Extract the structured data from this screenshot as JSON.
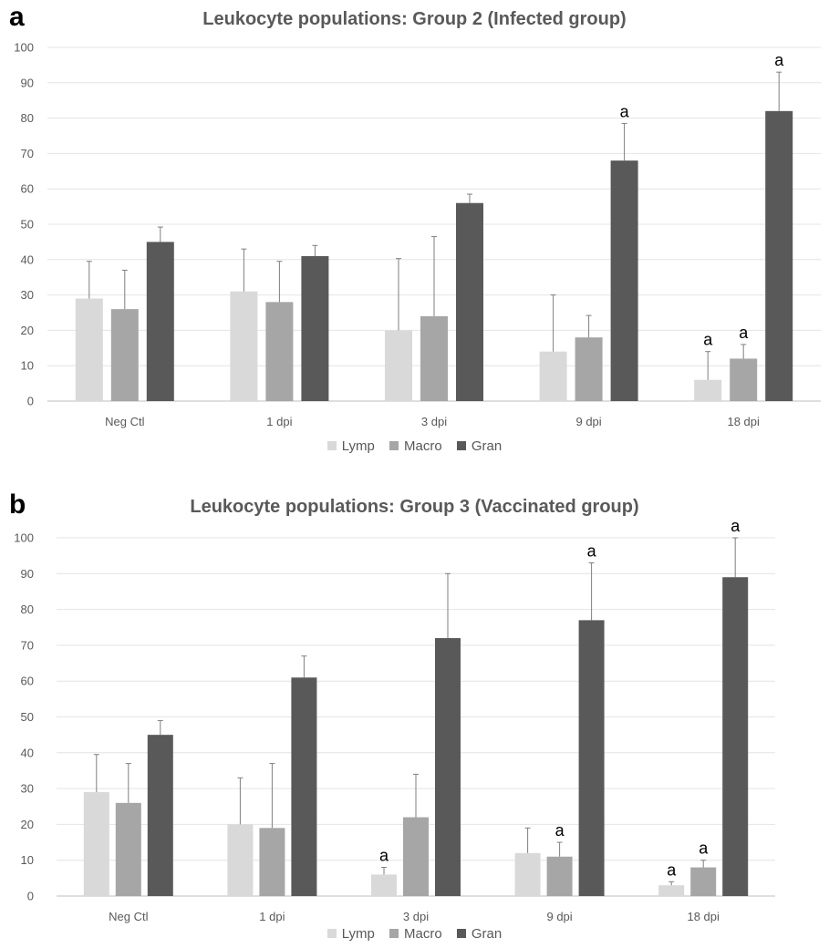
{
  "chart_data": [
    {
      "panel_letter": "a",
      "type": "bar",
      "title": "Leukocyte populations: Group 2 (Infected group)",
      "categories": [
        "Neg Ctl",
        "1 dpi",
        "3 dpi",
        "9 dpi",
        "18 dpi"
      ],
      "ylim": [
        0,
        100
      ],
      "yticks": [
        0,
        10,
        20,
        30,
        40,
        50,
        60,
        70,
        80,
        90,
        100
      ],
      "grid": true,
      "legend_position": "bottom",
      "series": [
        {
          "name": "Lymp",
          "color": "#d9d9d9",
          "values": [
            29,
            31,
            20,
            14,
            6
          ],
          "error_upper": [
            39.5,
            43,
            40.3,
            30,
            14
          ],
          "significance": [
            "",
            "",
            "",
            "",
            "a"
          ]
        },
        {
          "name": "Macro",
          "color": "#a6a6a6",
          "values": [
            26,
            28,
            24,
            18,
            12
          ],
          "error_upper": [
            37,
            39.5,
            46.5,
            24.2,
            16
          ],
          "significance": [
            "",
            "",
            "",
            "",
            "a"
          ]
        },
        {
          "name": "Gran",
          "color": "#595959",
          "values": [
            45,
            41,
            56,
            68,
            82
          ],
          "error_upper": [
            49.2,
            44,
            58.5,
            78.5,
            93
          ],
          "significance": [
            "",
            "",
            "",
            "a",
            "a"
          ]
        }
      ]
    },
    {
      "panel_letter": "b",
      "type": "bar",
      "title": "Leukocyte populations: Group 3 (Vaccinated group)",
      "categories": [
        "Neg Ctl",
        "1 dpi",
        "3 dpi",
        "9 dpi",
        "18 dpi"
      ],
      "ylim": [
        0,
        100
      ],
      "yticks": [
        0,
        10,
        20,
        30,
        40,
        50,
        60,
        70,
        80,
        90,
        100
      ],
      "grid": true,
      "legend_position": "bottom",
      "series": [
        {
          "name": "Lymp",
          "color": "#d9d9d9",
          "values": [
            29,
            20,
            6,
            12,
            3
          ],
          "error_upper": [
            39.5,
            33,
            8,
            19,
            4
          ],
          "significance": [
            "",
            "",
            "a",
            "",
            "a"
          ]
        },
        {
          "name": "Macro",
          "color": "#a6a6a6",
          "values": [
            26,
            19,
            22,
            11,
            8
          ],
          "error_upper": [
            37,
            37,
            34,
            15,
            10
          ],
          "significance": [
            "",
            "",
            "",
            "a",
            "a"
          ]
        },
        {
          "name": "Gran",
          "color": "#595959",
          "values": [
            45,
            61,
            72,
            77,
            89
          ],
          "error_upper": [
            49,
            67,
            90,
            93,
            100
          ],
          "significance": [
            "",
            "",
            "",
            "a",
            "a"
          ]
        }
      ]
    }
  ]
}
